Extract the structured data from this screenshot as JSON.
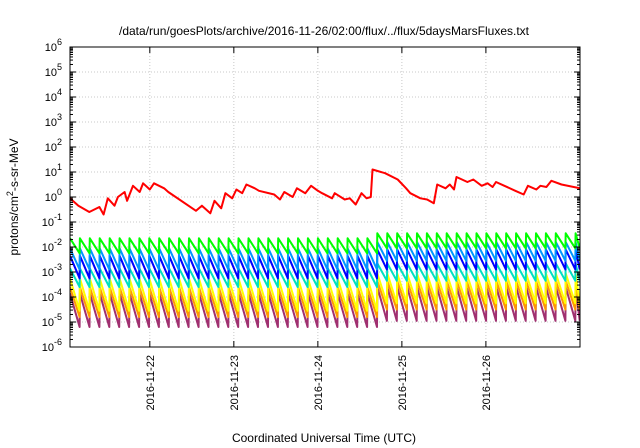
{
  "chart_data": {
    "type": "line",
    "title": "/data/run/goesPlots/archive/2016-11-26/02:00/flux/../flux/5daysMarsFluxes.txt",
    "xlabel": "Coordinated Universal Time (UTC)",
    "ylabel_base": "protons/cm",
    "ylabel_sup": "2",
    "ylabel_rest": "-s-sr-MeV",
    "yscale": "log",
    "ylim_exp": [
      -6,
      6
    ],
    "xlim_days": [
      -0.95,
      5.12
    ],
    "y_ticks": [
      {
        "base": "10",
        "exp": "-6"
      },
      {
        "base": "10",
        "exp": "-5"
      },
      {
        "base": "10",
        "exp": "-4"
      },
      {
        "base": "10",
        "exp": "-3"
      },
      {
        "base": "10",
        "exp": "-2"
      },
      {
        "base": "10",
        "exp": "-1"
      },
      {
        "base": "10",
        "exp": "0"
      },
      {
        "base": "10",
        "exp": "1"
      },
      {
        "base": "10",
        "exp": "2"
      },
      {
        "base": "10",
        "exp": "3"
      },
      {
        "base": "10",
        "exp": "4"
      },
      {
        "base": "10",
        "exp": "5"
      },
      {
        "base": "10",
        "exp": "6"
      }
    ],
    "x_ticks": [
      "2016-11-22",
      "2016-11-23",
      "2016-11-24",
      "2016-11-25",
      "2016-11-26"
    ],
    "x_tick_days": [
      0,
      1,
      2,
      3,
      4
    ],
    "grid": true,
    "red_series": {
      "color": "#ff0000",
      "points": [
        [
          -0.95,
          -0.05
        ],
        [
          -0.85,
          -0.35
        ],
        [
          -0.72,
          -0.6
        ],
        [
          -0.6,
          -0.4
        ],
        [
          -0.55,
          -0.7
        ],
        [
          -0.5,
          -0.05
        ],
        [
          -0.42,
          -0.35
        ],
        [
          -0.38,
          0.0
        ],
        [
          -0.3,
          0.2
        ],
        [
          -0.27,
          -0.15
        ],
        [
          -0.2,
          0.45
        ],
        [
          -0.12,
          0.2
        ],
        [
          -0.08,
          0.55
        ],
        [
          0.0,
          0.3
        ],
        [
          0.05,
          0.55
        ],
        [
          0.17,
          0.35
        ],
        [
          0.22,
          0.2
        ],
        [
          0.55,
          -0.55
        ],
        [
          0.62,
          -0.35
        ],
        [
          0.72,
          -0.65
        ],
        [
          0.77,
          -0.15
        ],
        [
          0.85,
          -0.45
        ],
        [
          0.9,
          0.15
        ],
        [
          0.98,
          -0.05
        ],
        [
          1.03,
          0.3
        ],
        [
          1.1,
          0.15
        ],
        [
          1.15,
          0.5
        ],
        [
          1.25,
          0.35
        ],
        [
          1.3,
          0.25
        ],
        [
          1.48,
          0.1
        ],
        [
          1.55,
          -0.1
        ],
        [
          1.6,
          0.2
        ],
        [
          1.7,
          0.0
        ],
        [
          1.75,
          0.35
        ],
        [
          1.85,
          0.15
        ],
        [
          1.92,
          0.45
        ],
        [
          2.0,
          0.25
        ],
        [
          2.05,
          0.15
        ],
        [
          2.17,
          -0.05
        ],
        [
          2.2,
          0.15
        ],
        [
          2.32,
          -0.1
        ],
        [
          2.38,
          -0.05
        ],
        [
          2.45,
          -0.3
        ],
        [
          2.52,
          0.15
        ],
        [
          2.58,
          -0.05
        ],
        [
          2.63,
          0.0
        ],
        [
          2.65,
          1.1
        ],
        [
          2.8,
          0.95
        ],
        [
          2.95,
          0.7
        ],
        [
          3.05,
          0.35
        ],
        [
          3.1,
          0.15
        ],
        [
          3.22,
          -0.05
        ],
        [
          3.3,
          -0.1
        ],
        [
          3.38,
          -0.25
        ],
        [
          3.42,
          0.5
        ],
        [
          3.52,
          0.35
        ],
        [
          3.57,
          0.5
        ],
        [
          3.62,
          0.3
        ],
        [
          3.65,
          0.8
        ],
        [
          3.78,
          0.6
        ],
        [
          3.85,
          0.7
        ],
        [
          3.95,
          0.45
        ],
        [
          4.02,
          0.55
        ],
        [
          4.08,
          0.4
        ],
        [
          4.12,
          0.6
        ],
        [
          4.22,
          0.45
        ],
        [
          4.35,
          0.25
        ],
        [
          4.45,
          0.1
        ],
        [
          4.5,
          0.45
        ],
        [
          4.6,
          0.3
        ],
        [
          4.65,
          0.45
        ],
        [
          4.72,
          0.4
        ],
        [
          4.78,
          0.65
        ],
        [
          4.9,
          0.5
        ],
        [
          5.12,
          0.35
        ]
      ]
    },
    "sawtooth_series": [
      {
        "color": "#00ff00",
        "high": -1.65,
        "low": -2.25,
        "late_high": -1.45,
        "late_low": -2.05
      },
      {
        "color": "#0096ff",
        "high": -2.05,
        "low": -2.9,
        "late_high": -1.8,
        "late_low": -2.55
      },
      {
        "color": "#0000ff",
        "high": -2.35,
        "low": -3.25,
        "late_high": -2.1,
        "late_low": -2.9
      },
      {
        "color": "#00e0c0",
        "high": -2.85,
        "low": -3.6,
        "late_high": -2.65,
        "late_low": -3.35
      },
      {
        "color": "#ffff00",
        "high": -3.25,
        "low": -4.55,
        "late_high": -3.05,
        "late_low": -4.25
      },
      {
        "color": "#ff9900",
        "high": -3.6,
        "low": -4.8,
        "late_high": -3.35,
        "late_low": -4.5
      },
      {
        "color": "#a03070",
        "high": -3.85,
        "low": -5.2,
        "late_high": -3.6,
        "late_low": -4.95
      }
    ],
    "sawtooth_period_days": 0.118,
    "sawtooth_start_days": -0.95,
    "sawtooth_shift_day": 2.62
  }
}
